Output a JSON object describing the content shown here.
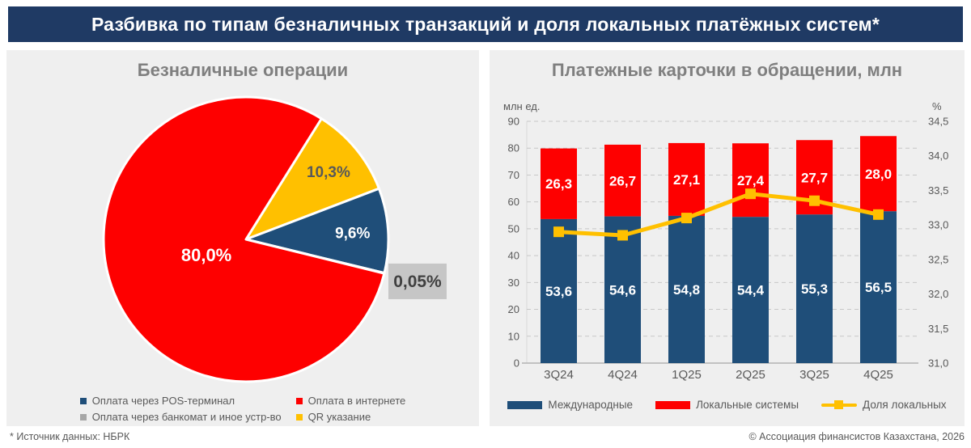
{
  "page": {
    "title": "Разбивка по типам безналичных транзакций и доля локальных платёжных систем*",
    "footer_left": "* Источник данных: НБРК",
    "footer_right": "© Ассоциация финансистов Казахстана, 2026"
  },
  "colors": {
    "navy": "#1f3a64",
    "blue": "#1f4e79",
    "red": "#fe0000",
    "yellow": "#ffc000",
    "gray_slice": "#a6a6a6",
    "panel_bg": "#efefef",
    "grid": "#c7c7c7",
    "axis_line": "#b3b3b3",
    "text_gray": "#595959",
    "title_gray": "#7f7f7f",
    "label_box_bg": "#c6c6c6",
    "label_box_text": "#404040"
  },
  "chart_data": [
    {
      "type": "pie",
      "title": "Безналичные операции",
      "slices": [
        {
          "label": "Оплата в интернете",
          "value": 80.0,
          "display": "80,0%",
          "color": "#fe0000",
          "label_color": "#ffffff"
        },
        {
          "label": "QR указание",
          "value": 10.3,
          "display": "10,3%",
          "color": "#ffc000",
          "label_color": "#595959"
        },
        {
          "label": "Оплата через POS-терминал",
          "value": 9.6,
          "display": "9,6%",
          "color": "#1f4e79",
          "label_color": "#ffffff"
        },
        {
          "label": "Оплата через банкомат и иное устр-во",
          "value": 0.05,
          "display": "0,05%",
          "color": "#a6a6a6",
          "label_color": "#404040",
          "boxed": true
        }
      ],
      "layout": {
        "start_angle_deg": 32,
        "draw_order": [
          1,
          2,
          3,
          0
        ],
        "label_radius": [
          0.3,
          0.75,
          0.75,
          1.24
        ]
      },
      "legend_order": [
        2,
        0,
        3,
        1
      ]
    },
    {
      "type": "bar+line",
      "title": "Платежные карточки в обращении, млн",
      "categories": [
        "3Q24",
        "4Q24",
        "1Q25",
        "2Q25",
        "3Q25",
        "4Q25"
      ],
      "series": [
        {
          "name": "Международные",
          "type": "bar",
          "color": "#1f4e79",
          "values": [
            53.6,
            54.6,
            54.8,
            54.4,
            55.3,
            56.5
          ],
          "labels": [
            "53,6",
            "54,6",
            "54,8",
            "54,4",
            "55,3",
            "56,5"
          ]
        },
        {
          "name": "Локальные системы",
          "type": "bar",
          "color": "#fe0000",
          "values": [
            26.3,
            26.7,
            27.1,
            27.4,
            27.7,
            28.0
          ],
          "labels": [
            "26,3",
            "26,7",
            "27,1",
            "27,4",
            "27,7",
            "28,0"
          ]
        },
        {
          "name": "Доля локальных",
          "type": "line",
          "axis": "right",
          "color": "#ffc000",
          "values": [
            32.9,
            32.85,
            33.1,
            33.45,
            33.35,
            33.15
          ]
        }
      ],
      "left_axis": {
        "label": "млн ед.",
        "min": 0,
        "max": 90,
        "step": 10,
        "ticks": [
          "0",
          "10",
          "20",
          "30",
          "40",
          "50",
          "60",
          "70",
          "80",
          "90"
        ]
      },
      "right_axis": {
        "label": "%",
        "min": 31.0,
        "max": 34.5,
        "step": 0.5,
        "ticks": [
          "31,0",
          "31,5",
          "32,0",
          "32,5",
          "33,0",
          "33,5",
          "34,0",
          "34,5"
        ]
      },
      "grid": true,
      "legend_position": "bottom"
    }
  ]
}
